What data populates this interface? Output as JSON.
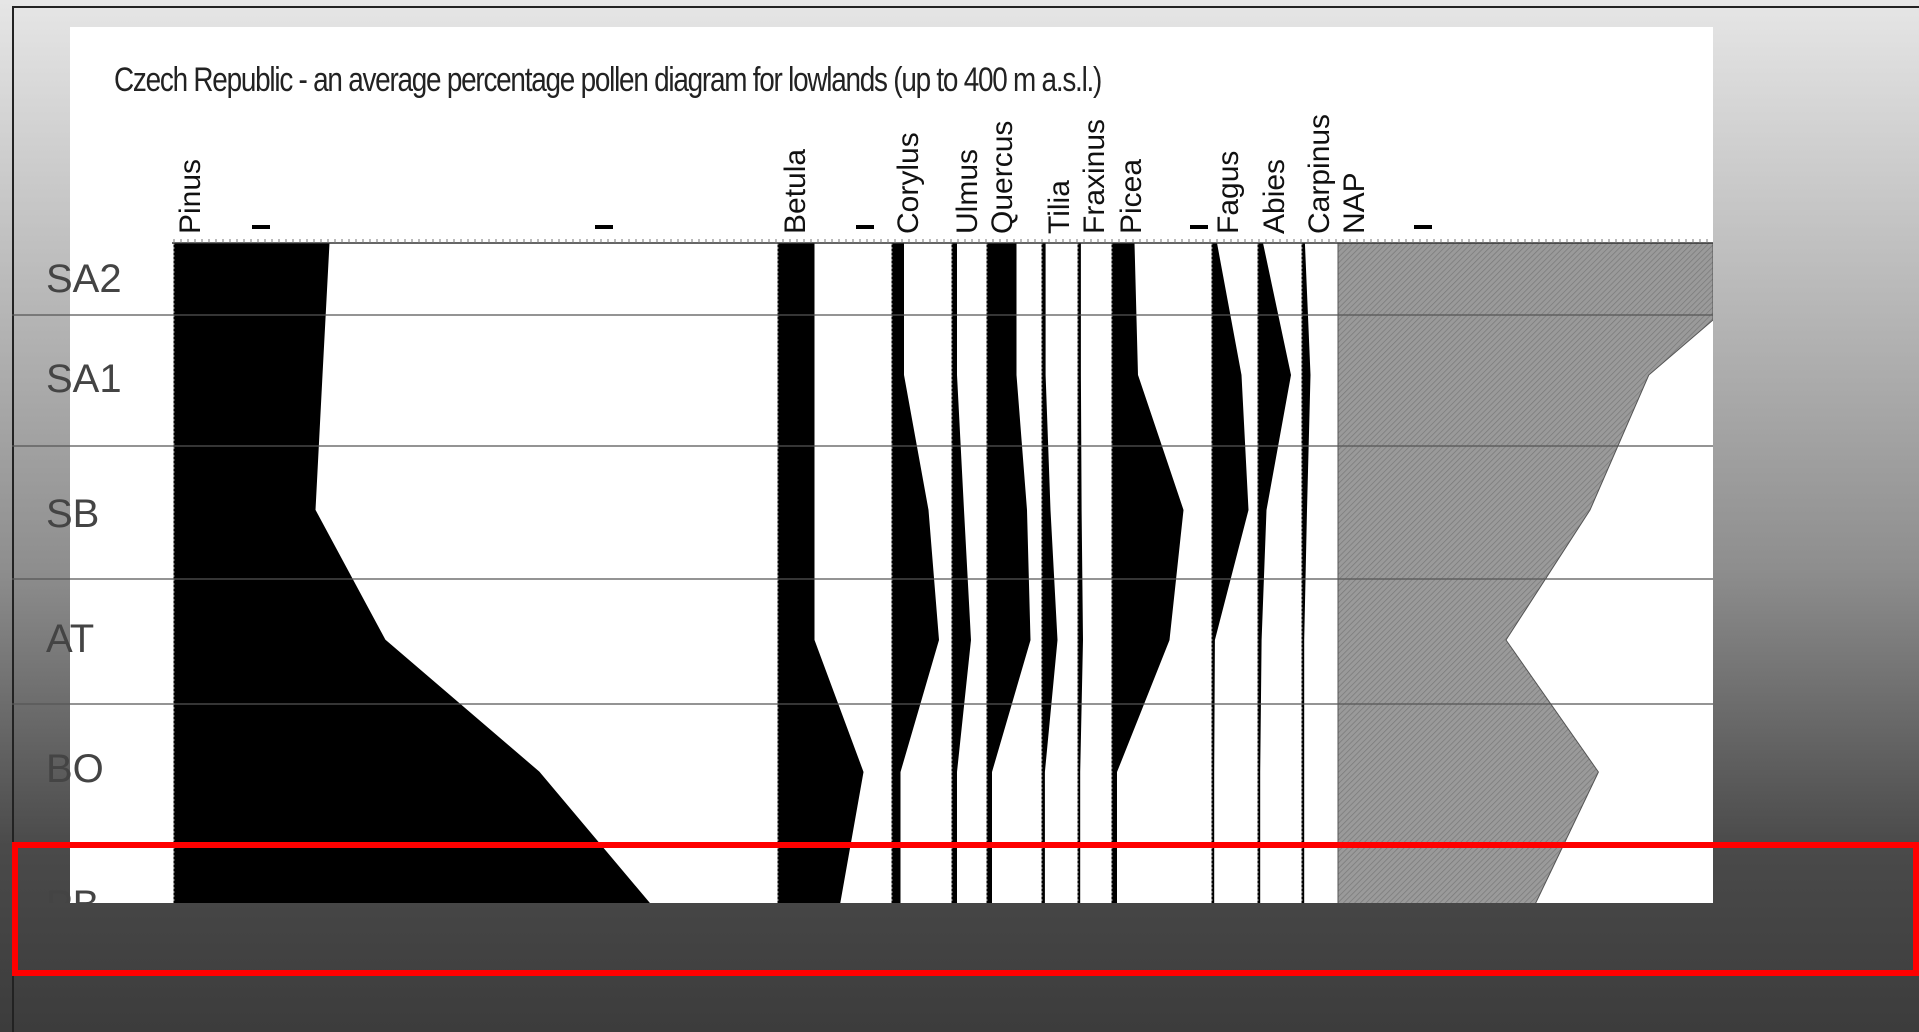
{
  "title": "Czech Republic - an average percentage pollen diagram for lowlands (up to 400 m a.s.l.)",
  "zones": [
    "SA2",
    "SA1",
    "SB",
    "AT",
    "BO",
    "PB"
  ],
  "highlight_color": "#ff0000",
  "chart_data": {
    "type": "area",
    "title": "Czech Republic - an average percentage pollen diagram for lowlands (up to 400 m a.s.l.)",
    "y_categories": [
      "SA2",
      "SA1",
      "SB",
      "AT",
      "BO",
      "PB"
    ],
    "taxa": [
      "Pinus",
      "Betula",
      "Corylus",
      "Ulmus",
      "Quercus",
      "Tilia",
      "Fraxinus",
      "Picea",
      "Fagus",
      "Abies",
      "Carpinus",
      "NAP"
    ],
    "series": [
      {
        "name": "Pinus",
        "values": [
          22,
          21,
          20,
          30,
          52,
          71
        ]
      },
      {
        "name": "Betula",
        "values": [
          5,
          5,
          5,
          5,
          12,
          8
        ]
      },
      {
        "name": "Corylus",
        "values": [
          1.5,
          1.5,
          5,
          6.5,
          1,
          1
        ]
      },
      {
        "name": "Ulmus",
        "values": [
          0.5,
          0.5,
          1.5,
          2.5,
          0.5,
          0.5
        ]
      },
      {
        "name": "Quercus",
        "values": [
          4,
          4,
          5.5,
          6,
          0.5,
          0.5
        ]
      },
      {
        "name": "Tilia",
        "values": [
          0.3,
          0.3,
          1,
          2,
          0.2,
          0.2
        ]
      },
      {
        "name": "Fraxinus",
        "values": [
          0.2,
          0.2,
          0.3,
          0.5,
          0.1,
          0.1
        ]
      },
      {
        "name": "Picea",
        "values": [
          3,
          3.5,
          10,
          8,
          0.5,
          0.5
        ]
      },
      {
        "name": "Fagus",
        "values": [
          0.5,
          4,
          5,
          0.2,
          0.1,
          0.1
        ]
      },
      {
        "name": "Abies",
        "values": [
          0.5,
          4.5,
          1,
          0.3,
          0.1,
          0.1
        ]
      },
      {
        "name": "Carpinus",
        "values": [
          0.2,
          1,
          0.5,
          0.1,
          0.1,
          0.1
        ]
      },
      {
        "name": "NAP",
        "values": [
          45,
          37,
          30,
          20,
          31,
          22
        ]
      }
    ],
    "colors": {
      "trees": "#000000",
      "nap": "#8c8c8c",
      "zone_line": "#555555"
    },
    "grid": false
  }
}
